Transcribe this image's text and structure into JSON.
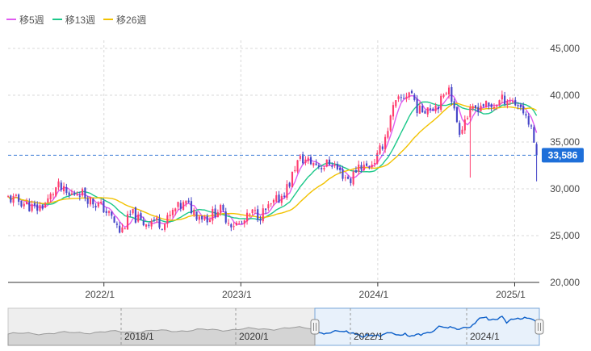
{
  "legend": [
    {
      "label": "移5週",
      "color": "#e05cf0"
    },
    {
      "label": "移13週",
      "color": "#1cc88a"
    },
    {
      "label": "移26週",
      "color": "#f2c200"
    }
  ],
  "colors": {
    "up": "#ff3c6e",
    "down": "#4646c8",
    "grid": "#d8d8d8",
    "current_line": "#3a7bd5",
    "price_badge": "#1e6fd9",
    "navigator_bg": "#eeeeee",
    "navigator_window": "#e8f1fb",
    "navigator_line": "#0c5fc9",
    "navigator_history": "#9a9a9a"
  },
  "current_price_label": "33,586",
  "chart_data": {
    "type": "candlestick",
    "ylim": [
      20000,
      45000
    ],
    "yticks": [
      "45,000",
      "40,000",
      "35,000",
      "30,000",
      "25,000",
      "20,000"
    ],
    "ytick_values": [
      45000,
      40000,
      35000,
      30000,
      25000,
      20000
    ],
    "xticks": [
      {
        "label": "2022/1",
        "t": 2022.0
      },
      {
        "label": "2023/1",
        "t": 2023.0
      },
      {
        "label": "2024/1",
        "t": 2024.0
      },
      {
        "label": "2025/1",
        "t": 2025.0
      }
    ],
    "xlim": [
      2021.3,
      2025.18
    ],
    "current_price": 33586,
    "close_path": [
      [
        2021.3,
        29000
      ],
      [
        2021.4,
        28600
      ],
      [
        2021.5,
        27800
      ],
      [
        2021.58,
        28500
      ],
      [
        2021.66,
        30300
      ],
      [
        2021.74,
        29200
      ],
      [
        2021.82,
        29800
      ],
      [
        2021.9,
        28800
      ],
      [
        2022.0,
        27900
      ],
      [
        2022.06,
        26800
      ],
      [
        2022.12,
        25300
      ],
      [
        2022.2,
        27400
      ],
      [
        2022.28,
        26300
      ],
      [
        2022.36,
        26700
      ],
      [
        2022.44,
        26200
      ],
      [
        2022.52,
        27800
      ],
      [
        2022.6,
        28400
      ],
      [
        2022.68,
        27300
      ],
      [
        2022.76,
        26900
      ],
      [
        2022.84,
        27900
      ],
      [
        2022.92,
        26400
      ],
      [
        2023.0,
        26100
      ],
      [
        2023.08,
        27400
      ],
      [
        2023.14,
        27200
      ],
      [
        2023.22,
        28100
      ],
      [
        2023.3,
        29300
      ],
      [
        2023.36,
        30700
      ],
      [
        2023.4,
        32600
      ],
      [
        2023.44,
        33200
      ],
      [
        2023.52,
        32800
      ],
      [
        2023.6,
        32400
      ],
      [
        2023.66,
        32900
      ],
      [
        2023.72,
        31800
      ],
      [
        2023.8,
        30900
      ],
      [
        2023.86,
        32600
      ],
      [
        2023.92,
        32300
      ],
      [
        2024.0,
        33400
      ],
      [
        2024.06,
        35800
      ],
      [
        2024.12,
        38900
      ],
      [
        2024.18,
        39700
      ],
      [
        2024.24,
        40500
      ],
      [
        2024.3,
        38200
      ],
      [
        2024.36,
        38800
      ],
      [
        2024.42,
        38900
      ],
      [
        2024.48,
        39600
      ],
      [
        2024.52,
        41300
      ],
      [
        2024.56,
        38100
      ],
      [
        2024.6,
        36200
      ],
      [
        2024.64,
        37600
      ],
      [
        2024.7,
        38400
      ],
      [
        2024.76,
        39100
      ],
      [
        2024.82,
        38600
      ],
      [
        2024.88,
        39300
      ],
      [
        2024.94,
        39700
      ],
      [
        2025.0,
        39200
      ],
      [
        2025.04,
        38900
      ],
      [
        2025.08,
        37900
      ],
      [
        2025.12,
        36300
      ],
      [
        2025.16,
        33586
      ]
    ],
    "ma5_series": "移5週",
    "ma13_series": "移13週",
    "ma26_series": "移26週"
  },
  "navigator": {
    "labels": [
      {
        "label": "2018/1"
      },
      {
        "label": "2020/1"
      },
      {
        "label": "2022/1"
      },
      {
        "label": "2024/1"
      }
    ]
  }
}
